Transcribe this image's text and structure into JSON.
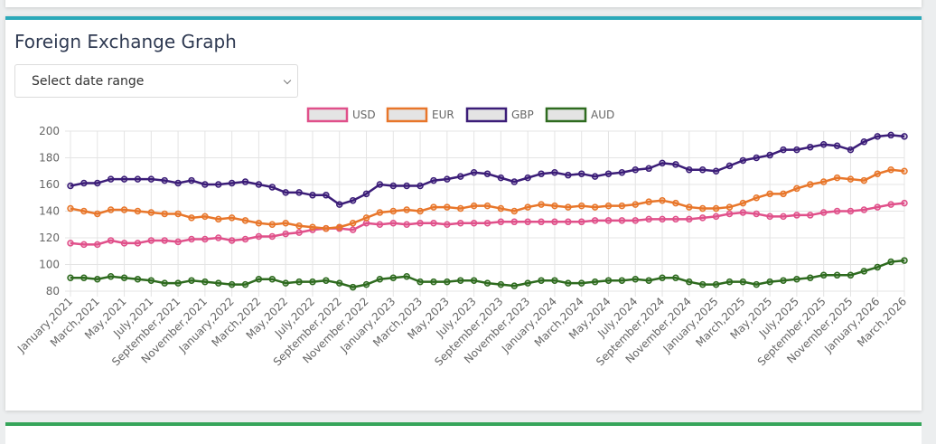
{
  "controls": {
    "date_range_select": "Select date range"
  },
  "chart_data": {
    "type": "line",
    "title": "Foreign Exchange Graph",
    "categories": [
      "January,2021",
      null,
      "March,2021",
      null,
      "May,2021",
      null,
      "July,2021",
      null,
      "September,2021",
      null,
      "November,2021",
      null,
      "January,2022",
      null,
      "March,2022",
      null,
      "May,2022",
      null,
      "July,2022",
      null,
      "September,2022",
      null,
      "November,2022",
      null,
      "January,2023",
      null,
      "March,2023",
      null,
      "May,2023",
      null,
      "July,2023",
      null,
      "September,2023",
      null,
      "November,2023",
      null,
      "January,2024",
      null,
      "March,2024",
      null,
      "May,2024",
      null,
      "July,2024",
      null,
      "September,2024",
      null,
      "November,2024",
      null,
      "January,2025",
      null,
      "March,2025",
      null,
      "May,2025",
      null,
      "July,2025",
      null,
      "September,2025",
      null,
      "November,2025",
      null,
      "January,2026",
      null,
      "March,2026"
    ],
    "series": [
      {
        "name": "USD",
        "color": "#e0508a",
        "values": [
          116,
          115,
          115,
          118,
          116,
          116,
          118,
          118,
          117,
          119,
          119,
          120,
          118,
          119,
          121,
          121,
          123,
          124,
          126,
          127,
          127,
          126,
          131,
          130,
          131,
          130,
          131,
          131,
          130,
          131,
          131,
          131,
          132,
          132,
          132,
          132,
          132,
          132,
          132,
          133,
          133,
          133,
          133,
          134,
          134,
          134,
          134,
          135,
          136,
          138,
          139,
          138,
          136,
          136,
          137,
          137,
          139,
          140,
          140,
          141,
          143,
          145,
          146
        ]
      },
      {
        "name": "EUR",
        "color": "#e8762a",
        "values": [
          142,
          140,
          138,
          141,
          141,
          140,
          139,
          138,
          138,
          135,
          136,
          134,
          135,
          133,
          131,
          130,
          131,
          129,
          128,
          127,
          128,
          131,
          135,
          139,
          140,
          141,
          140,
          143,
          143,
          142,
          144,
          144,
          142,
          140,
          143,
          145,
          144,
          143,
          144,
          143,
          144,
          144,
          145,
          147,
          148,
          146,
          143,
          142,
          142,
          143,
          146,
          150,
          153,
          153,
          157,
          160,
          162,
          165,
          164,
          163,
          168,
          171,
          170
        ]
      },
      {
        "name": "GBP",
        "color": "#3b1d78",
        "values": [
          159,
          161,
          161,
          164,
          164,
          164,
          164,
          163,
          161,
          163,
          160,
          160,
          161,
          162,
          160,
          158,
          154,
          154,
          152,
          152,
          145,
          148,
          153,
          160,
          159,
          159,
          159,
          163,
          164,
          166,
          169,
          168,
          165,
          162,
          165,
          168,
          169,
          167,
          168,
          166,
          168,
          169,
          171,
          172,
          176,
          175,
          171,
          171,
          170,
          174,
          178,
          180,
          182,
          186,
          186,
          188,
          190,
          189,
          186,
          192,
          196,
          197,
          196
        ]
      },
      {
        "name": "AUD",
        "color": "#2e6b1f",
        "values": [
          90,
          90,
          89,
          91,
          90,
          89,
          88,
          86,
          86,
          88,
          87,
          86,
          85,
          85,
          89,
          89,
          86,
          87,
          87,
          88,
          86,
          83,
          85,
          89,
          90,
          91,
          87,
          87,
          87,
          88,
          88,
          86,
          85,
          84,
          86,
          88,
          88,
          86,
          86,
          87,
          88,
          88,
          89,
          88,
          90,
          90,
          87,
          85,
          85,
          87,
          87,
          85,
          87,
          88,
          89,
          90,
          92,
          92,
          92,
          95,
          98,
          102,
          103
        ]
      }
    ],
    "ylim": [
      80,
      200
    ],
    "yticks": [
      80,
      100,
      120,
      140,
      160,
      180,
      200
    ],
    "grid": true,
    "legend": "top"
  }
}
